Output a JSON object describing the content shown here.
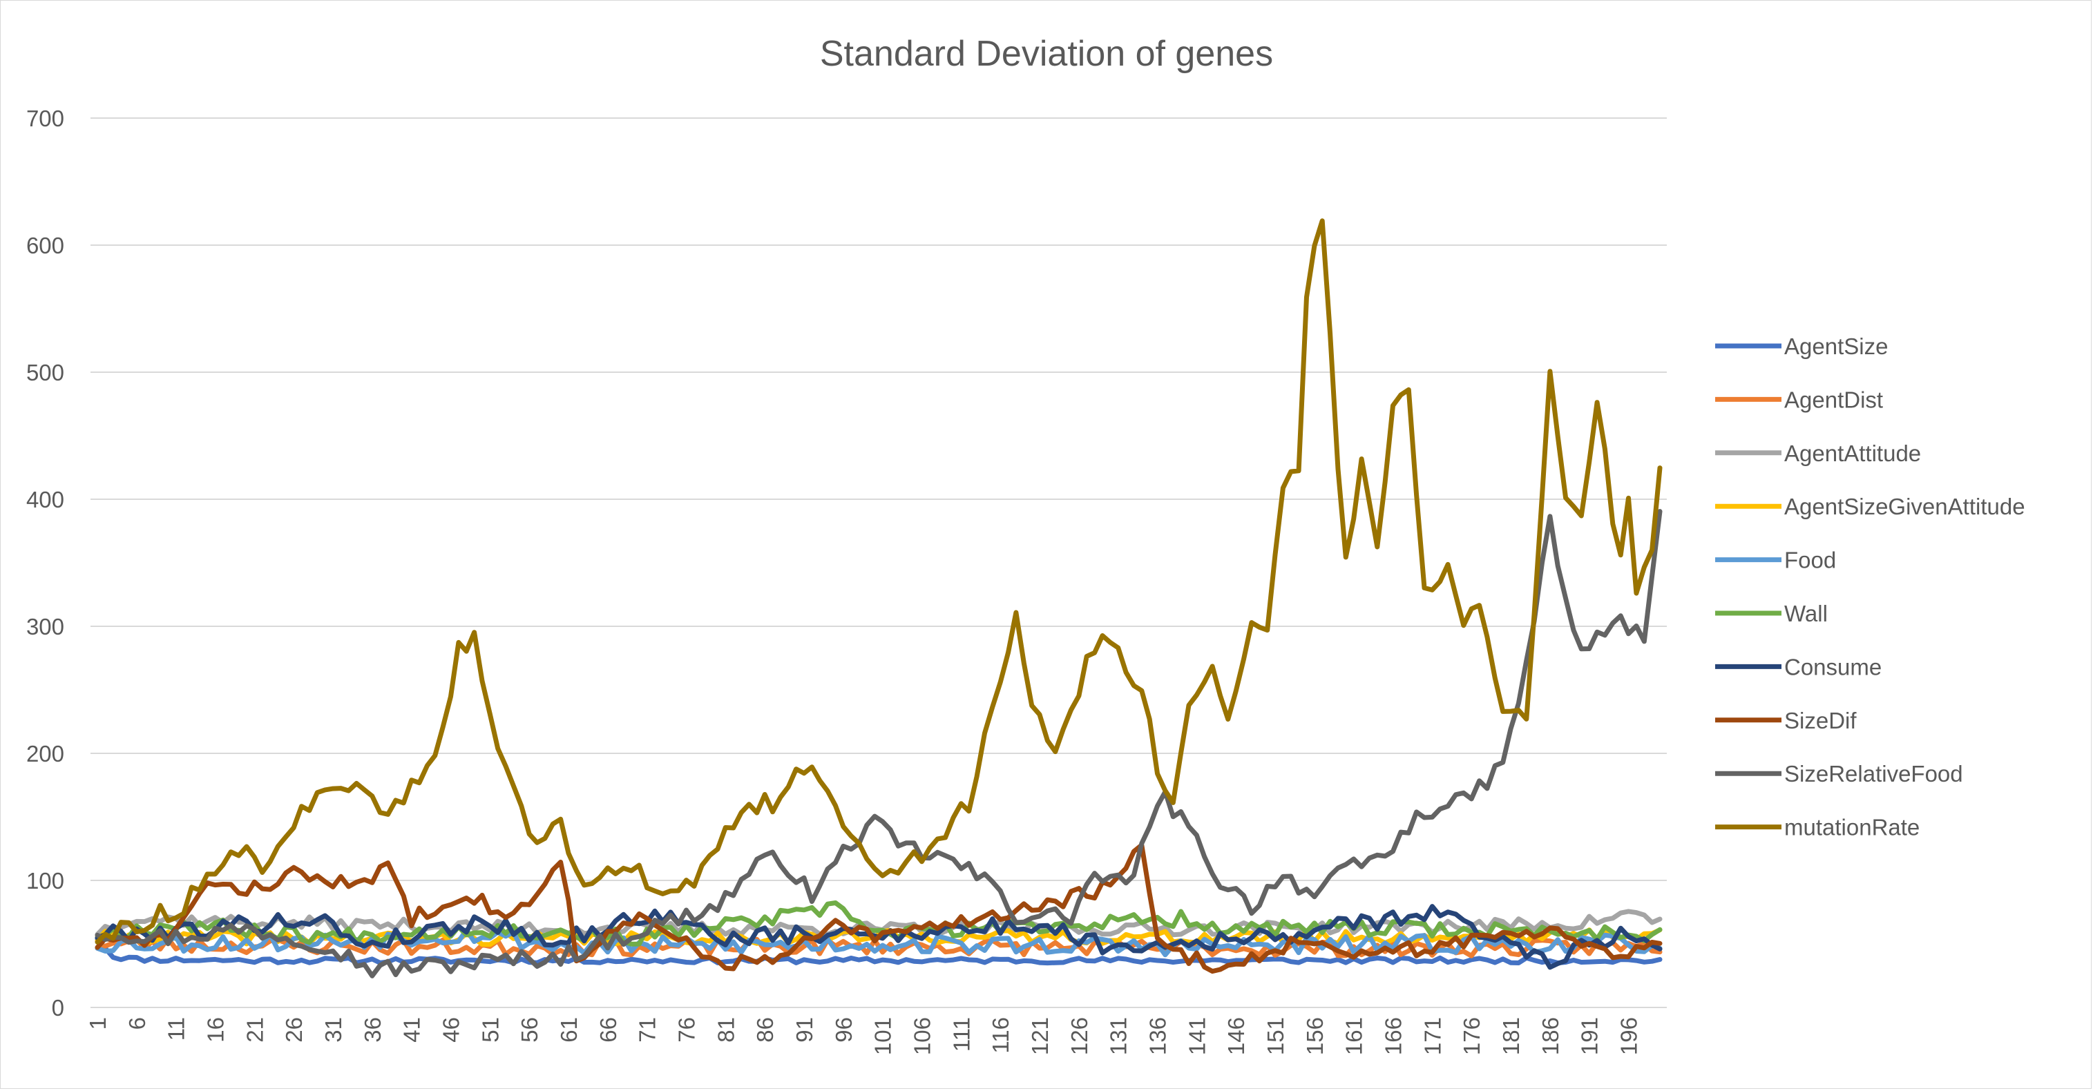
{
  "chart_data": {
    "type": "line",
    "title": "Standard Deviation of genes",
    "xlabel": "",
    "ylabel": "",
    "x_start": 1,
    "x_end": 200,
    "x_tick_labels": [
      "1",
      "6",
      "11",
      "16",
      "21",
      "26",
      "31",
      "36",
      "41",
      "46",
      "51",
      "56",
      "61",
      "66",
      "71",
      "76",
      "81",
      "86",
      "91",
      "96",
      "101",
      "106",
      "111",
      "116",
      "121",
      "126",
      "131",
      "136",
      "141",
      "146",
      "151",
      "156",
      "161",
      "166",
      "171",
      "176",
      "181",
      "186",
      "191",
      "196"
    ],
    "y_tick_labels": [
      "0",
      "100",
      "200",
      "300",
      "400",
      "500",
      "600",
      "700"
    ],
    "ylim": [
      0,
      700
    ],
    "grid": "horizontal",
    "legend_position": "right",
    "series": [
      {
        "name": "AgentSize",
        "color": "#4472C4",
        "keypoints": [
          [
            1,
            55
          ],
          [
            3,
            40
          ],
          [
            6,
            38
          ],
          [
            20,
            37
          ],
          [
            60,
            37
          ],
          [
            100,
            37
          ],
          [
            140,
            37
          ],
          [
            170,
            37
          ],
          [
            200,
            37
          ]
        ],
        "noise": 2,
        "seed": 11
      },
      {
        "name": "AgentDist",
        "color": "#ED7D31",
        "keypoints": [
          [
            1,
            50
          ],
          [
            30,
            48
          ],
          [
            60,
            47
          ],
          [
            100,
            48
          ],
          [
            140,
            47
          ],
          [
            170,
            46
          ],
          [
            200,
            48
          ]
        ],
        "noise": 6,
        "seed": 23
      },
      {
        "name": "AgentAttitude",
        "color": "#A5A5A5",
        "keypoints": [
          [
            1,
            60
          ],
          [
            5,
            70
          ],
          [
            30,
            66
          ],
          [
            60,
            62
          ],
          [
            100,
            62
          ],
          [
            140,
            62
          ],
          [
            170,
            64
          ],
          [
            190,
            66
          ],
          [
            196,
            74
          ],
          [
            200,
            68
          ]
        ],
        "noise": 5,
        "seed": 37
      },
      {
        "name": "AgentSizeGivenAttitude",
        "color": "#FFC000",
        "keypoints": [
          [
            1,
            55
          ],
          [
            30,
            55
          ],
          [
            60,
            54
          ],
          [
            100,
            56
          ],
          [
            140,
            55
          ],
          [
            170,
            55
          ],
          [
            200,
            58
          ]
        ],
        "noise": 5,
        "seed": 41
      },
      {
        "name": "Food",
        "color": "#5B9BD5",
        "keypoints": [
          [
            1,
            50
          ],
          [
            30,
            52
          ],
          [
            50,
            58
          ],
          [
            60,
            48
          ],
          [
            100,
            50
          ],
          [
            140,
            48
          ],
          [
            170,
            50
          ],
          [
            200,
            50
          ]
        ],
        "noise": 7,
        "seed": 53
      },
      {
        "name": "Wall",
        "color": "#70AD47",
        "keypoints": [
          [
            1,
            58
          ],
          [
            12,
            66
          ],
          [
            30,
            56
          ],
          [
            50,
            62
          ],
          [
            70,
            55
          ],
          [
            96,
            78
          ],
          [
            100,
            58
          ],
          [
            140,
            70
          ],
          [
            145,
            62
          ],
          [
            170,
            62
          ],
          [
            200,
            58
          ]
        ],
        "noise": 6,
        "seed": 67
      },
      {
        "name": "Consume",
        "color": "#264478",
        "keypoints": [
          [
            1,
            58
          ],
          [
            10,
            60
          ],
          [
            29,
            70
          ],
          [
            35,
            50
          ],
          [
            50,
            68
          ],
          [
            60,
            52
          ],
          [
            72,
            75
          ],
          [
            80,
            55
          ],
          [
            100,
            58
          ],
          [
            121,
            65
          ],
          [
            130,
            48
          ],
          [
            150,
            55
          ],
          [
            171,
            75
          ],
          [
            186,
            38
          ],
          [
            195,
            58
          ],
          [
            200,
            50
          ]
        ],
        "noise": 7,
        "seed": 79
      },
      {
        "name": "SizeDif",
        "color": "#9E480E",
        "keypoints": [
          [
            1,
            50
          ],
          [
            10,
            55
          ],
          [
            16,
            100
          ],
          [
            20,
            92
          ],
          [
            26,
            105
          ],
          [
            35,
            95
          ],
          [
            38,
            115
          ],
          [
            41,
            70
          ],
          [
            48,
            92
          ],
          [
            52,
            75
          ],
          [
            56,
            78
          ],
          [
            60,
            120
          ],
          [
            62,
            40
          ],
          [
            70,
            70
          ],
          [
            76,
            50
          ],
          [
            80,
            35
          ],
          [
            88,
            38
          ],
          [
            95,
            65
          ],
          [
            100,
            55
          ],
          [
            111,
            68
          ],
          [
            121,
            80
          ],
          [
            130,
            95
          ],
          [
            134,
            125
          ],
          [
            136,
            50
          ],
          [
            144,
            30
          ],
          [
            155,
            55
          ],
          [
            160,
            38
          ],
          [
            175,
            52
          ],
          [
            186,
            62
          ],
          [
            195,
            42
          ],
          [
            200,
            52
          ]
        ],
        "noise": 6,
        "seed": 83
      },
      {
        "name": "SizeRelativeFood",
        "color": "#636363",
        "keypoints": [
          [
            1,
            60
          ],
          [
            10,
            55
          ],
          [
            20,
            62
          ],
          [
            30,
            50
          ],
          [
            36,
            30
          ],
          [
            42,
            32
          ],
          [
            50,
            36
          ],
          [
            60,
            40
          ],
          [
            70,
            60
          ],
          [
            80,
            80
          ],
          [
            85,
            112
          ],
          [
            88,
            118
          ],
          [
            92,
            88
          ],
          [
            97,
            130
          ],
          [
            100,
            145
          ],
          [
            103,
            128
          ],
          [
            110,
            115
          ],
          [
            116,
            92
          ],
          [
            118,
            72
          ],
          [
            125,
            72
          ],
          [
            128,
            105
          ],
          [
            132,
            95
          ],
          [
            135,
            140
          ],
          [
            137,
            165
          ],
          [
            140,
            140
          ],
          [
            144,
            100
          ],
          [
            148,
            80
          ],
          [
            152,
            105
          ],
          [
            156,
            88
          ],
          [
            160,
            108
          ],
          [
            165,
            120
          ],
          [
            170,
            155
          ],
          [
            175,
            162
          ],
          [
            180,
            190
          ],
          [
            183,
            270
          ],
          [
            186,
            382
          ],
          [
            188,
            320
          ],
          [
            190,
            280
          ],
          [
            195,
            305
          ],
          [
            198,
            290
          ],
          [
            200,
            385
          ]
        ],
        "noise": 7,
        "seed": 97
      },
      {
        "name": "mutationRate",
        "color": "#997300",
        "keypoints": [
          [
            1,
            55
          ],
          [
            8,
            70
          ],
          [
            12,
            80
          ],
          [
            15,
            100
          ],
          [
            18,
            130
          ],
          [
            22,
            112
          ],
          [
            27,
            155
          ],
          [
            30,
            165
          ],
          [
            33,
            175
          ],
          [
            37,
            155
          ],
          [
            42,
            175
          ],
          [
            44,
            195
          ],
          [
            47,
            280
          ],
          [
            49,
            288
          ],
          [
            51,
            225
          ],
          [
            54,
            170
          ],
          [
            57,
            130
          ],
          [
            60,
            150
          ],
          [
            62,
            100
          ],
          [
            65,
            108
          ],
          [
            70,
            105
          ],
          [
            74,
            92
          ],
          [
            77,
            95
          ],
          [
            80,
            125
          ],
          [
            84,
            160
          ],
          [
            88,
            160
          ],
          [
            91,
            190
          ],
          [
            94,
            170
          ],
          [
            97,
            140
          ],
          [
            100,
            110
          ],
          [
            104,
            115
          ],
          [
            108,
            130
          ],
          [
            112,
            160
          ],
          [
            115,
            235
          ],
          [
            118,
            305
          ],
          [
            120,
            245
          ],
          [
            123,
            195
          ],
          [
            127,
            270
          ],
          [
            129,
            300
          ],
          [
            132,
            265
          ],
          [
            134,
            255
          ],
          [
            136,
            190
          ],
          [
            138,
            160
          ],
          [
            140,
            235
          ],
          [
            143,
            265
          ],
          [
            145,
            225
          ],
          [
            148,
            295
          ],
          [
            150,
            300
          ],
          [
            152,
            410
          ],
          [
            154,
            420
          ],
          [
            155,
            560
          ],
          [
            157,
            625
          ],
          [
            159,
            430
          ],
          [
            160,
            350
          ],
          [
            162,
            435
          ],
          [
            164,
            370
          ],
          [
            166,
            470
          ],
          [
            168,
            490
          ],
          [
            170,
            330
          ],
          [
            173,
            345
          ],
          [
            175,
            300
          ],
          [
            177,
            320
          ],
          [
            180,
            230
          ],
          [
            183,
            225
          ],
          [
            186,
            495
          ],
          [
            188,
            400
          ],
          [
            190,
            390
          ],
          [
            192,
            480
          ],
          [
            194,
            385
          ],
          [
            195,
            350
          ],
          [
            196,
            395
          ],
          [
            197,
            330
          ],
          [
            199,
            355
          ],
          [
            200,
            425
          ]
        ],
        "noise": 8,
        "seed": 113
      }
    ]
  }
}
